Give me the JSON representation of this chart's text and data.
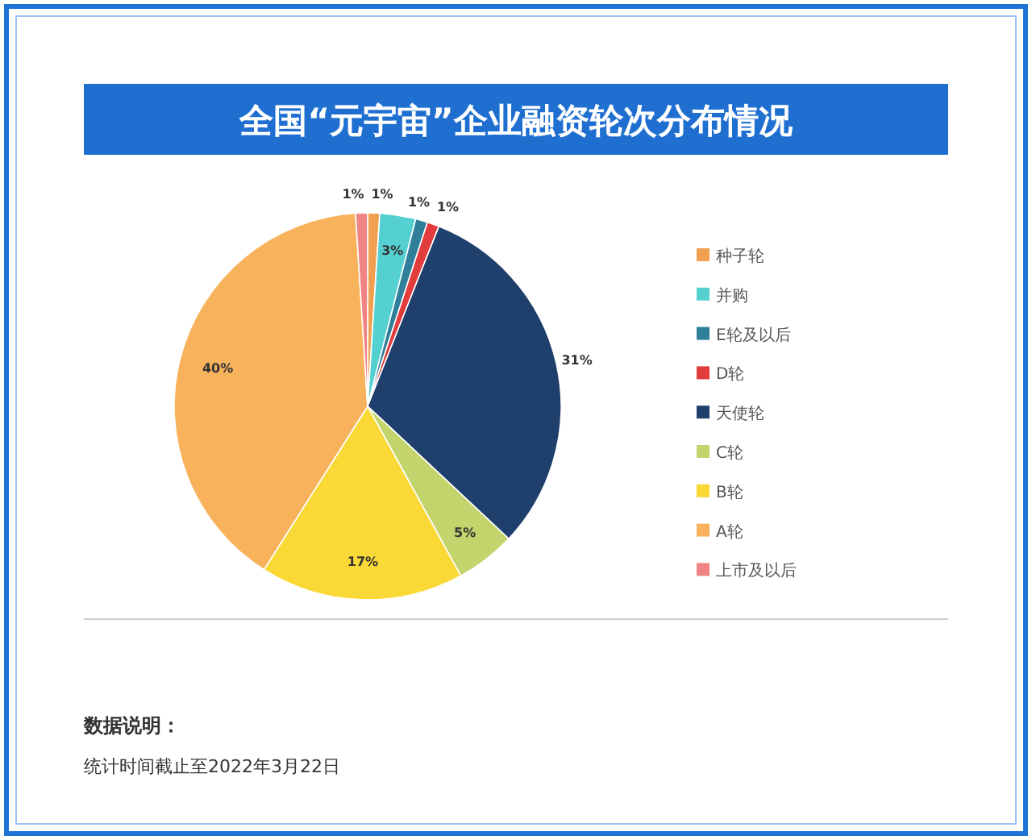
{
  "chart_data": {
    "type": "pie",
    "title": "全国“元宇宙”企业融资轮次分布情况",
    "categories": [
      "种子轮",
      "并购",
      "E轮及以后",
      "D轮",
      "天使轮",
      "C轮",
      "B轮",
      "A轮",
      "上市及以后"
    ],
    "values": [
      1,
      3,
      1,
      1,
      31,
      5,
      17,
      40,
      1
    ],
    "colors": [
      "#f0a050",
      "#55d0d0",
      "#2f7f9a",
      "#e23c3c",
      "#1f3f6d",
      "#c4d46c",
      "#fad835",
      "#f8b25c",
      "#f08484"
    ],
    "value_labels": [
      "1%",
      "3%",
      "1%",
      "1%",
      "31%",
      "5%",
      "17%",
      "40%",
      "1%"
    ],
    "legend": "right",
    "annotations": [
      "数据说明：",
      "统计时间截止至2022年3月22日"
    ]
  }
}
